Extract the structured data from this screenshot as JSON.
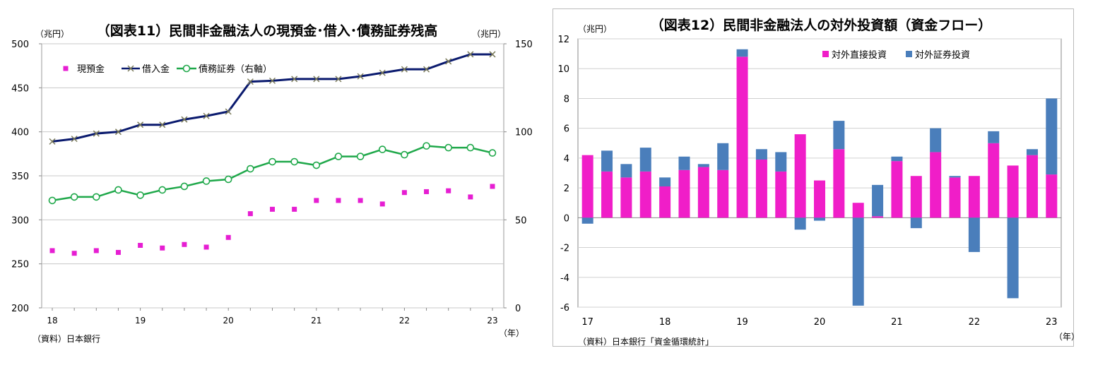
{
  "chart_data": [
    {
      "type": "line",
      "title": "（図表11）民間非金融法人の現預金･借入･債務証券残高",
      "ylabel_left": "（兆円）",
      "ylabel_right": "（兆円）",
      "x_unit": "（年）",
      "source": "（資料）日本銀行",
      "ylim_left": [
        200,
        500
      ],
      "ylim_right": [
        0,
        150
      ],
      "yticks_left": [
        "200",
        "250",
        "300",
        "350",
        "400",
        "450",
        "500"
      ],
      "yticks_right": [
        "0",
        "50",
        "100",
        "150"
      ],
      "x_tick_labels": [
        "18",
        "19",
        "20",
        "21",
        "22",
        "23"
      ],
      "x_tick_index": [
        0,
        4,
        8,
        12,
        16,
        20
      ],
      "x_count": 21,
      "legend_position": "top-left",
      "series": [
        {
          "name": "現預金",
          "axis": "left",
          "color": "#e61ed2",
          "marker": "square",
          "values": [
            265,
            262,
            265,
            263,
            271,
            268,
            272,
            269,
            280,
            307,
            312,
            312,
            322,
            322,
            322,
            318,
            331,
            332,
            333,
            326,
            338
          ]
        },
        {
          "name": "借入金",
          "axis": "left",
          "color": "#0a1a6e",
          "marker": "x",
          "values": [
            389,
            392,
            398,
            400,
            408,
            408,
            414,
            418,
            423,
            457,
            458,
            460,
            460,
            460,
            463,
            467,
            471,
            471,
            480,
            488,
            488
          ]
        },
        {
          "name": "債務証券（右軸）",
          "axis": "right",
          "color": "#1fa84a",
          "marker": "circle",
          "values": [
            61,
            63,
            63,
            67,
            64,
            67,
            69,
            72,
            73,
            79,
            83,
            83,
            81,
            86,
            86,
            90,
            87,
            92,
            91,
            91,
            88
          ]
        }
      ]
    },
    {
      "type": "bar",
      "stacked": true,
      "title": "（図表12）民間非金融法人の対外投資額（資金フロー）",
      "ylabel": "（兆円）",
      "x_unit": "（年）",
      "source": "（資料）日本銀行「資金循環統計」",
      "ylim": [
        -6,
        12
      ],
      "yticks": [
        "-6",
        "-4",
        "-2",
        "0",
        "2",
        "4",
        "6",
        "8",
        "10",
        "12"
      ],
      "x_tick_labels": [
        "17",
        "18",
        "19",
        "20",
        "21",
        "22",
        "23"
      ],
      "x_tick_index": [
        0,
        4,
        8,
        12,
        16,
        20,
        24
      ],
      "legend_position": "top-right",
      "series": [
        {
          "name": "対外直接投資",
          "color": "#f01ec8",
          "values": [
            4.2,
            3.1,
            2.7,
            3.1,
            2.1,
            3.2,
            3.4,
            3.2,
            10.8,
            3.9,
            3.1,
            5.6,
            2.5,
            4.6,
            1.0,
            0.1,
            3.8,
            2.8,
            4.4,
            2.7,
            2.8,
            5.0,
            3.5,
            4.2,
            2.9
          ]
        },
        {
          "name": "対外証券投資",
          "color": "#4a7ebb",
          "values": [
            -0.4,
            1.4,
            0.9,
            1.6,
            0.6,
            0.9,
            0.2,
            1.8,
            0.5,
            0.7,
            1.3,
            -0.8,
            -0.2,
            1.9,
            -5.9,
            2.1,
            0.3,
            -0.7,
            1.6,
            0.1,
            -2.3,
            0.8,
            -5.4,
            0.4,
            5.1
          ]
        }
      ]
    }
  ]
}
